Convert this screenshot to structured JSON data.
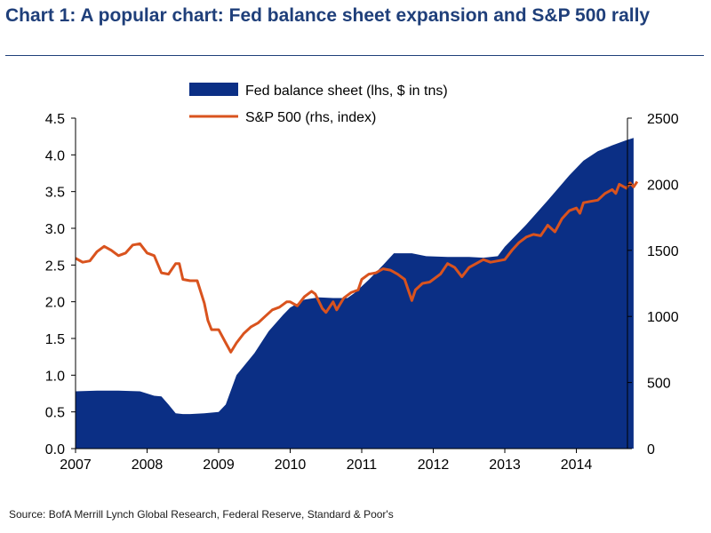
{
  "title": "Chart 1: A popular chart: Fed balance sheet expansion and S&P 500 rally",
  "source": "Source: BofA Merrill Lynch Global Research, Federal Reserve, Standard & Poor's",
  "colors": {
    "fed": "#0b2f85",
    "sp500": "#d9531e",
    "title": "#1f3f7a"
  },
  "chart_data": {
    "type": "area",
    "legend_position": "top-center",
    "grid": false,
    "x_ticks": [
      "2007",
      "2008",
      "2009",
      "2010",
      "2011",
      "2012",
      "2013",
      "2014"
    ],
    "xlim": [
      2007,
      2014.9
    ],
    "y_left": {
      "ticks": [
        "0.0",
        "0.5",
        "1.0",
        "1.5",
        "2.0",
        "2.5",
        "3.0",
        "3.5",
        "4.0",
        "4.5"
      ],
      "lim": [
        0,
        4.5
      ]
    },
    "y_right": {
      "ticks": [
        "0",
        "500",
        "1000",
        "1500",
        "2000",
        "2500"
      ],
      "lim": [
        0,
        2500
      ]
    },
    "series": [
      {
        "name": "Fed balance sheet (lhs, $ in tns)",
        "type": "area",
        "axis": "left",
        "color": "#0b2f85",
        "points": [
          [
            2007.0,
            0.78
          ],
          [
            2007.3,
            0.79
          ],
          [
            2007.6,
            0.79
          ],
          [
            2007.9,
            0.78
          ],
          [
            2008.1,
            0.72
          ],
          [
            2008.2,
            0.71
          ],
          [
            2008.3,
            0.6
          ],
          [
            2008.4,
            0.48
          ],
          [
            2008.5,
            0.47
          ],
          [
            2008.6,
            0.47
          ],
          [
            2008.8,
            0.48
          ],
          [
            2009.0,
            0.5
          ],
          [
            2009.1,
            0.6
          ],
          [
            2009.25,
            1.0
          ],
          [
            2009.5,
            1.3
          ],
          [
            2009.7,
            1.6
          ],
          [
            2009.9,
            1.82
          ],
          [
            2010.0,
            1.92
          ],
          [
            2010.2,
            2.03
          ],
          [
            2010.4,
            2.06
          ],
          [
            2010.6,
            2.05
          ],
          [
            2010.8,
            2.05
          ],
          [
            2010.9,
            2.12
          ],
          [
            2011.1,
            2.3
          ],
          [
            2011.3,
            2.5
          ],
          [
            2011.45,
            2.66
          ],
          [
            2011.7,
            2.66
          ],
          [
            2011.9,
            2.62
          ],
          [
            2012.2,
            2.61
          ],
          [
            2012.5,
            2.61
          ],
          [
            2012.7,
            2.6
          ],
          [
            2012.9,
            2.62
          ],
          [
            2013.0,
            2.75
          ],
          [
            2013.3,
            3.05
          ],
          [
            2013.6,
            3.38
          ],
          [
            2013.9,
            3.72
          ],
          [
            2014.1,
            3.92
          ],
          [
            2014.3,
            4.05
          ],
          [
            2014.5,
            4.13
          ],
          [
            2014.7,
            4.2
          ],
          [
            2014.8,
            4.23
          ]
        ]
      },
      {
        "name": "S&P 500 (rhs, index)",
        "type": "line",
        "axis": "right",
        "color": "#d9531e",
        "points": [
          [
            2007.0,
            1440
          ],
          [
            2007.1,
            1410
          ],
          [
            2007.2,
            1420
          ],
          [
            2007.3,
            1490
          ],
          [
            2007.4,
            1530
          ],
          [
            2007.5,
            1500
          ],
          [
            2007.6,
            1460
          ],
          [
            2007.7,
            1480
          ],
          [
            2007.8,
            1540
          ],
          [
            2007.9,
            1550
          ],
          [
            2008.0,
            1480
          ],
          [
            2008.1,
            1460
          ],
          [
            2008.2,
            1330
          ],
          [
            2008.3,
            1320
          ],
          [
            2008.4,
            1400
          ],
          [
            2008.45,
            1400
          ],
          [
            2008.5,
            1280
          ],
          [
            2008.6,
            1270
          ],
          [
            2008.7,
            1270
          ],
          [
            2008.8,
            1100
          ],
          [
            2008.85,
            970
          ],
          [
            2008.9,
            900
          ],
          [
            2009.0,
            900
          ],
          [
            2009.1,
            800
          ],
          [
            2009.17,
            730
          ],
          [
            2009.25,
            800
          ],
          [
            2009.35,
            870
          ],
          [
            2009.45,
            920
          ],
          [
            2009.55,
            950
          ],
          [
            2009.65,
            1000
          ],
          [
            2009.75,
            1050
          ],
          [
            2009.85,
            1070
          ],
          [
            2009.95,
            1110
          ],
          [
            2010.0,
            1110
          ],
          [
            2010.1,
            1080
          ],
          [
            2010.2,
            1150
          ],
          [
            2010.3,
            1190
          ],
          [
            2010.35,
            1170
          ],
          [
            2010.45,
            1060
          ],
          [
            2010.5,
            1030
          ],
          [
            2010.6,
            1110
          ],
          [
            2010.65,
            1050
          ],
          [
            2010.75,
            1140
          ],
          [
            2010.85,
            1180
          ],
          [
            2010.95,
            1200
          ],
          [
            2011.0,
            1280
          ],
          [
            2011.1,
            1320
          ],
          [
            2011.2,
            1330
          ],
          [
            2011.3,
            1360
          ],
          [
            2011.4,
            1350
          ],
          [
            2011.5,
            1320
          ],
          [
            2011.6,
            1280
          ],
          [
            2011.7,
            1120
          ],
          [
            2011.75,
            1200
          ],
          [
            2011.85,
            1250
          ],
          [
            2011.95,
            1260
          ],
          [
            2012.1,
            1320
          ],
          [
            2012.2,
            1400
          ],
          [
            2012.3,
            1370
          ],
          [
            2012.4,
            1300
          ],
          [
            2012.5,
            1370
          ],
          [
            2012.6,
            1400
          ],
          [
            2012.7,
            1430
          ],
          [
            2012.8,
            1410
          ],
          [
            2012.9,
            1420
          ],
          [
            2013.0,
            1430
          ],
          [
            2013.1,
            1500
          ],
          [
            2013.2,
            1560
          ],
          [
            2013.3,
            1600
          ],
          [
            2013.4,
            1620
          ],
          [
            2013.5,
            1610
          ],
          [
            2013.6,
            1690
          ],
          [
            2013.7,
            1640
          ],
          [
            2013.8,
            1740
          ],
          [
            2013.9,
            1800
          ],
          [
            2014.0,
            1820
          ],
          [
            2014.05,
            1780
          ],
          [
            2014.1,
            1860
          ],
          [
            2014.2,
            1870
          ],
          [
            2014.3,
            1880
          ],
          [
            2014.4,
            1930
          ],
          [
            2014.5,
            1960
          ],
          [
            2014.55,
            1930
          ],
          [
            2014.6,
            2000
          ],
          [
            2014.7,
            1970
          ],
          [
            2014.75,
            2010
          ],
          [
            2014.8,
            1980
          ],
          [
            2014.85,
            2020
          ]
        ]
      }
    ]
  }
}
